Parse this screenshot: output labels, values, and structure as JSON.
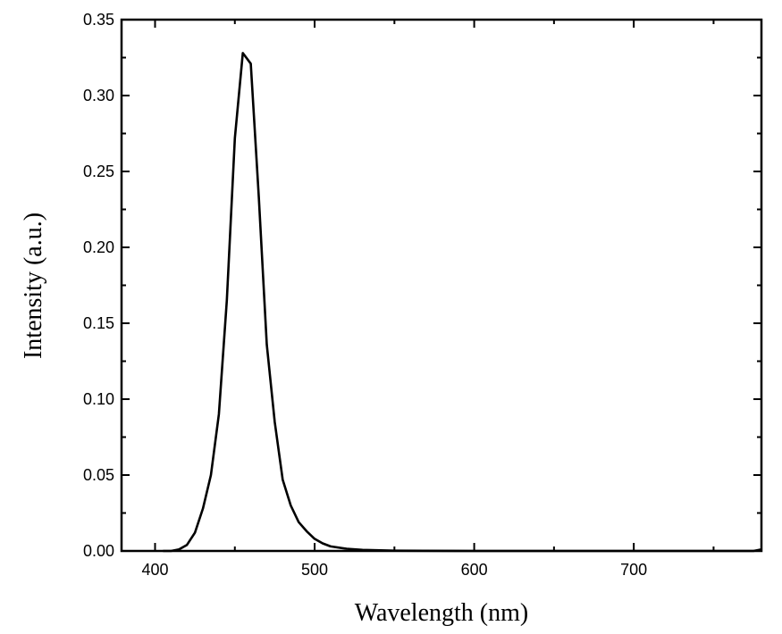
{
  "chart_data": {
    "type": "line",
    "title": "",
    "xlabel": "Wavelength (nm)",
    "ylabel": "Intensity (a.u.)",
    "xlim": [
      379,
      780
    ],
    "ylim": [
      0,
      0.35
    ],
    "grid": false,
    "x_ticks": [
      400,
      500,
      600,
      700
    ],
    "x_tick_labels": [
      "400",
      "500",
      "600",
      "700"
    ],
    "x_minor_ticks": [
      450,
      550,
      650,
      750
    ],
    "y_ticks": [
      0,
      0.05,
      0.1,
      0.15,
      0.2,
      0.25,
      0.3,
      0.35
    ],
    "y_tick_labels": [
      "0.00",
      "0.05",
      "0.10",
      "0.15",
      "0.20",
      "0.25",
      "0.30",
      "0.35"
    ],
    "y_minor_ticks": [
      0.025,
      0.075,
      0.125,
      0.175,
      0.225,
      0.275,
      0.325
    ],
    "line_color": "#000000",
    "series": [
      {
        "x": [
          405,
          410,
          415,
          420,
          425,
          430,
          435,
          440,
          445,
          450,
          455,
          460,
          465,
          470,
          475,
          480,
          485,
          490,
          495,
          500,
          505,
          510,
          520,
          530,
          550,
          600,
          650,
          700,
          750,
          775,
          780
        ],
        "y": [
          0,
          0,
          0.001,
          0.004,
          0.012,
          0.028,
          0.05,
          0.09,
          0.165,
          0.272,
          0.328,
          0.321,
          0.233,
          0.136,
          0.085,
          0.047,
          0.03,
          0.019,
          0.013,
          0.008,
          0.005,
          0.003,
          0.0015,
          0.0007,
          0.0002,
          0,
          0,
          0,
          0,
          0,
          0.001
        ]
      }
    ]
  }
}
